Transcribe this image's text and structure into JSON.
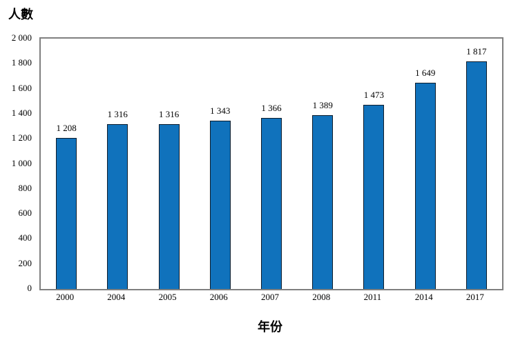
{
  "chart_data": {
    "type": "bar",
    "title": "",
    "ylabel": "人數",
    "xlabel": "年份",
    "categories": [
      "2000",
      "2004",
      "2005",
      "2006",
      "2007",
      "2008",
      "2011",
      "2014",
      "2017"
    ],
    "values": [
      1208,
      1316,
      1316,
      1343,
      1366,
      1389,
      1473,
      1649,
      1817
    ],
    "value_labels": [
      "1 208",
      "1 316",
      "1 316",
      "1 343",
      "1 366",
      "1 389",
      "1 473",
      "1 649",
      "1 817"
    ],
    "ylim": [
      0,
      2000
    ],
    "ytick_interval": 200,
    "ytick_labels": [
      "0",
      "200",
      "400",
      "600",
      "800",
      "1 000",
      "1 200",
      "1 400",
      "1 600",
      "1 800",
      "2 000"
    ],
    "grid": false,
    "legend": false,
    "colors": {
      "bar_fill": "#1072BC",
      "bar_border": "#0d1b2a",
      "plot_border": "#7f7f7f",
      "text": "#000000",
      "background": "#ffffff"
    }
  }
}
